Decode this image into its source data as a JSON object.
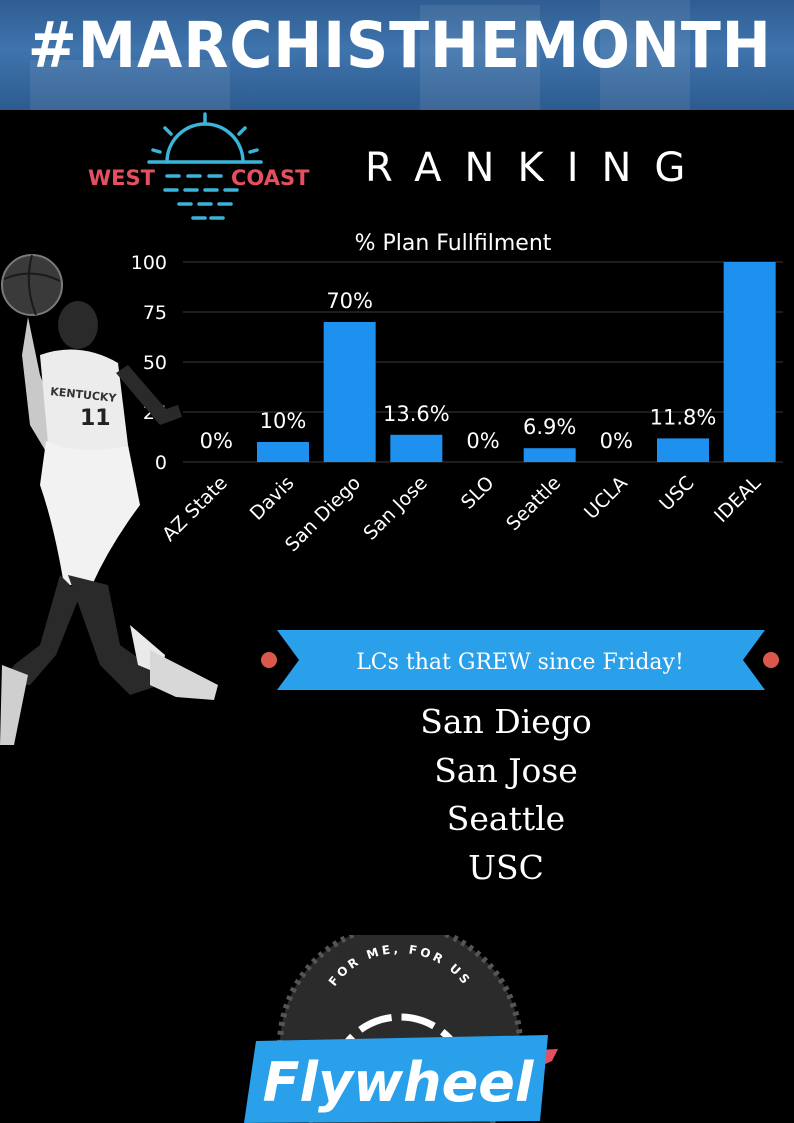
{
  "banner": {
    "hashtag": "#MARCHISTHEMONTH"
  },
  "logo": {
    "left_word": "WEST",
    "right_word": "COAST"
  },
  "heading": {
    "ranking": "RANKING"
  },
  "chart_data": {
    "type": "bar",
    "title": "% Plan Fullfilment",
    "categories": [
      "AZ State",
      "Davis",
      "San Diego",
      "San Jose",
      "SLO",
      "Seattle",
      "UCLA",
      "USC",
      "IDEAL"
    ],
    "values": [
      0,
      10,
      70,
      13.6,
      0,
      6.9,
      0,
      11.8,
      100
    ],
    "data_labels": [
      "0%",
      "10%",
      "70%",
      "13.6%",
      "0%",
      "6.9%",
      "0%",
      "11.8%",
      ""
    ],
    "ylim": [
      0,
      100
    ],
    "yticks": [
      0,
      25,
      50,
      75,
      100
    ],
    "grid": true,
    "bar_color": "#1e90ef"
  },
  "ribbon": {
    "label": "LCs that GREW since Friday!"
  },
  "grew": [
    "San Diego",
    "San Jose",
    "Seattle",
    "USC"
  ],
  "player": {
    "jersey_text": "KENTUCKY",
    "number": "11"
  },
  "badge": {
    "tagline": "FOR ME, FOR US",
    "brand": "Flywheel"
  },
  "colors": {
    "accent_blue": "#2a9fea",
    "coral": "#e4505f",
    "cyan": "#3bb4d9",
    "ribbon_dot": "#d9584b"
  }
}
